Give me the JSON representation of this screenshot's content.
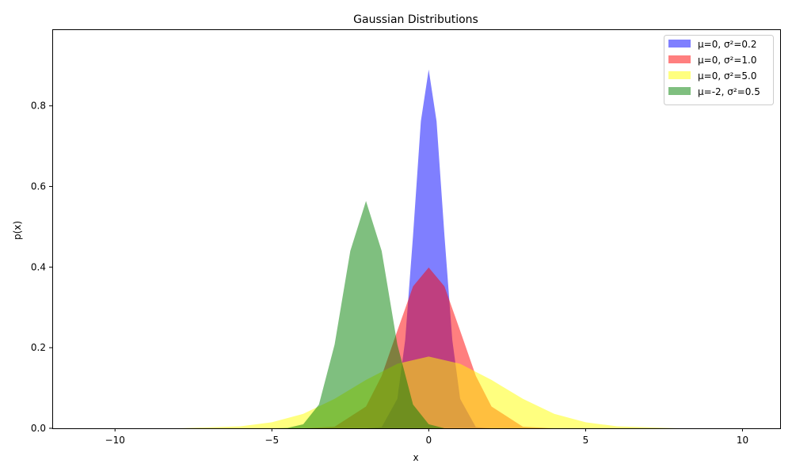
{
  "chart_data": {
    "type": "area",
    "title": "Gaussian Distributions",
    "xlabel": "x",
    "ylabel": "p(x)",
    "xlim": [
      -12,
      11.2
    ],
    "ylim": [
      0,
      0.99
    ],
    "x_ticks": [
      -10,
      -5,
      0,
      5,
      10
    ],
    "x_tick_labels": [
      "−10",
      "−5",
      "0",
      "5",
      "10"
    ],
    "y_ticks": [
      0.0,
      0.2,
      0.4,
      0.6,
      0.8
    ],
    "y_tick_labels": [
      "0.0",
      "0.2",
      "0.4",
      "0.6",
      "0.8"
    ],
    "grid": false,
    "legend_position": "top-right",
    "opacity": 0.5,
    "series": [
      {
        "name": "μ=0, σ²=0.2",
        "color": "#0000ff",
        "mu": 0,
        "variance": 0.2,
        "x": [
          -2.0,
          -1.5,
          -1.0,
          -0.75,
          -0.5,
          -0.25,
          0.0,
          0.25,
          0.5,
          0.75,
          1.0,
          1.5,
          2.0
        ],
        "y": [
          0.0,
          0.003,
          0.073,
          0.219,
          0.478,
          0.762,
          0.89,
          0.762,
          0.478,
          0.219,
          0.073,
          0.003,
          0.0
        ]
      },
      {
        "name": "μ=0, σ²=1.0",
        "color": "#ff0000",
        "mu": 0,
        "variance": 1.0,
        "x": [
          -4.0,
          -3.0,
          -2.0,
          -1.5,
          -1.0,
          -0.5,
          0.0,
          0.5,
          1.0,
          1.5,
          2.0,
          3.0,
          4.0
        ],
        "y": [
          0.0,
          0.004,
          0.054,
          0.13,
          0.242,
          0.352,
          0.399,
          0.352,
          0.242,
          0.13,
          0.054,
          0.004,
          0.0
        ]
      },
      {
        "name": "μ=0, σ²=5.0",
        "color": "#ffff00",
        "mu": 0,
        "variance": 5.0,
        "x": [
          -10.0,
          -8.0,
          -6.0,
          -5.0,
          -4.0,
          -3.0,
          -2.0,
          -1.0,
          0.0,
          1.0,
          2.0,
          3.0,
          4.0,
          5.0,
          6.0,
          8.0,
          10.0
        ],
        "y": [
          0.0,
          0.0,
          0.005,
          0.015,
          0.036,
          0.073,
          0.12,
          0.16,
          0.178,
          0.16,
          0.12,
          0.073,
          0.036,
          0.015,
          0.005,
          0.0,
          0.0
        ]
      },
      {
        "name": "μ=-2, σ²=0.5",
        "color": "#008000",
        "mu": -2,
        "variance": 0.5,
        "x": [
          -5.0,
          -4.5,
          -4.0,
          -3.5,
          -3.0,
          -2.5,
          -2.0,
          -1.5,
          -1.0,
          -0.5,
          0.0,
          0.5
        ],
        "y": [
          0.0,
          0.001,
          0.01,
          0.059,
          0.208,
          0.44,
          0.564,
          0.44,
          0.208,
          0.059,
          0.01,
          0.0
        ]
      }
    ]
  }
}
